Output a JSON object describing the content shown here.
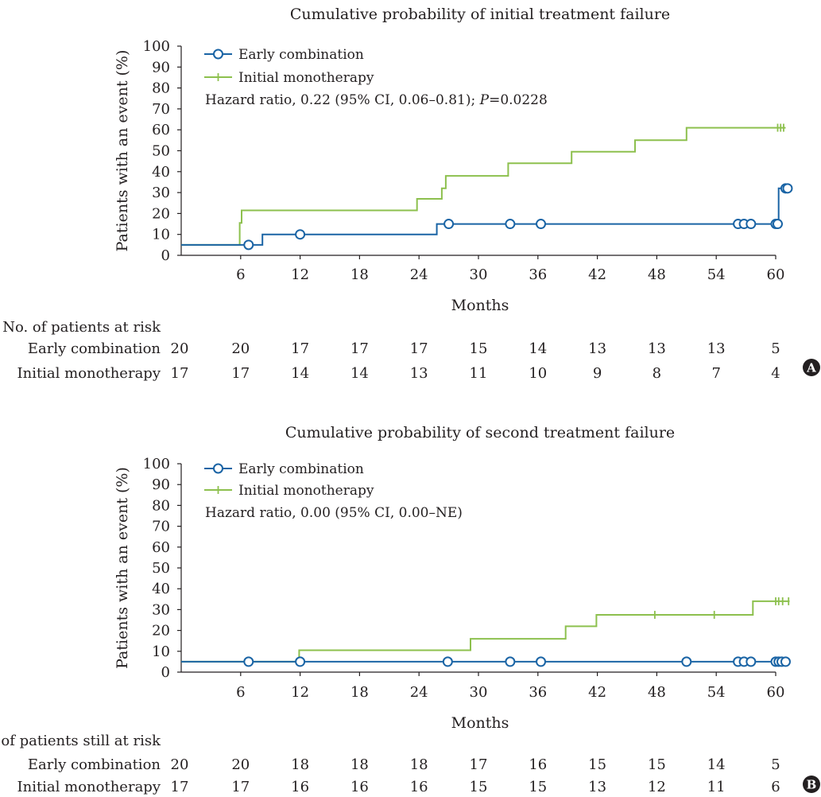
{
  "colors": {
    "early_combination": "#1a64a5",
    "initial_monotherapy": "#8dc04e",
    "axis": "#231f20",
    "badge": "#231f20"
  },
  "chart_data": [
    {
      "type": "line",
      "step": true,
      "badge": "A",
      "title": "Cumulative probability of initial treatment failure",
      "xlabel": "Months",
      "ylabel": "Patients with an event (%)",
      "xlim": [
        0,
        60
      ],
      "ylim": [
        0,
        100
      ],
      "x_ticks": [
        6,
        12,
        18,
        24,
        30,
        36,
        42,
        48,
        54,
        60
      ],
      "y_ticks": [
        0,
        10,
        20,
        30,
        40,
        50,
        60,
        70,
        80,
        90,
        100
      ],
      "annotation": {
        "text": "Hazard ratio, 0.22 (95% CI, 0.06–0.81); ",
        "italic": "P",
        "suffix": "=0.0228"
      },
      "legend_position": "top-left",
      "series": [
        {
          "name": "Early combination",
          "key": "early_combination",
          "marker": "circle",
          "steps": [
            [
              0,
              5
            ],
            [
              8.2,
              5
            ],
            [
              8.2,
              10
            ],
            [
              25.8,
              10
            ],
            [
              25.8,
              15
            ],
            [
              60.3,
              15
            ],
            [
              60.3,
              32
            ],
            [
              61,
              32
            ]
          ],
          "censored": [
            [
              6.8,
              5
            ],
            [
              12,
              10
            ],
            [
              27,
              15
            ],
            [
              33.2,
              15
            ],
            [
              36.3,
              15
            ],
            [
              56.2,
              15
            ],
            [
              56.8,
              15
            ],
            [
              57.5,
              15
            ],
            [
              60,
              15
            ],
            [
              60.2,
              15
            ],
            [
              61,
              32
            ],
            [
              61.2,
              32
            ]
          ]
        },
        {
          "name": "Initial monotherapy",
          "key": "initial_monotherapy",
          "marker": "tick",
          "steps": [
            [
              0,
              5
            ],
            [
              5.9,
              5
            ],
            [
              5.9,
              15.5
            ],
            [
              6.1,
              15.5
            ],
            [
              6.1,
              21.5
            ],
            [
              23.8,
              21.5
            ],
            [
              23.8,
              27
            ],
            [
              26.3,
              27
            ],
            [
              26.3,
              32
            ],
            [
              26.7,
              32
            ],
            [
              26.7,
              38
            ],
            [
              33,
              38
            ],
            [
              33,
              44
            ],
            [
              39.4,
              44
            ],
            [
              39.4,
              49.5
            ],
            [
              45.8,
              49.5
            ],
            [
              45.8,
              55
            ],
            [
              51,
              55
            ],
            [
              51,
              61
            ],
            [
              61,
              61
            ]
          ],
          "censored": [
            [
              60.2,
              61
            ],
            [
              60.5,
              61
            ],
            [
              60.8,
              61
            ]
          ]
        }
      ],
      "risk_table": {
        "header": "No. of patients at risk",
        "rows": [
          {
            "label": "Early combination",
            "values": [
              20,
              20,
              17,
              17,
              17,
              15,
              14,
              13,
              13,
              13,
              5
            ]
          },
          {
            "label": "Initial monotherapy",
            "values": [
              17,
              17,
              14,
              14,
              13,
              11,
              10,
              9,
              8,
              7,
              4
            ]
          }
        ]
      }
    },
    {
      "type": "line",
      "step": true,
      "badge": "B",
      "title": "Cumulative probability of second treatment failure",
      "xlabel": "Months",
      "ylabel": "Patients with an event (%)",
      "xlim": [
        0,
        60
      ],
      "ylim": [
        0,
        100
      ],
      "x_ticks": [
        6,
        12,
        18,
        24,
        30,
        36,
        42,
        48,
        54,
        60
      ],
      "y_ticks": [
        0,
        10,
        20,
        30,
        40,
        50,
        60,
        70,
        80,
        90,
        100
      ],
      "annotation": {
        "text": "Hazard ratio, 0.00 (95% CI, 0.00–NE)",
        "italic": "",
        "suffix": ""
      },
      "legend_position": "top-left",
      "series": [
        {
          "name": "Early combination",
          "key": "early_combination",
          "marker": "circle",
          "steps": [
            [
              0,
              5
            ],
            [
              61.3,
              5
            ]
          ],
          "censored": [
            [
              6.8,
              5
            ],
            [
              12,
              5
            ],
            [
              26.9,
              5
            ],
            [
              33.2,
              5
            ],
            [
              36.3,
              5
            ],
            [
              51,
              5
            ],
            [
              56.2,
              5
            ],
            [
              56.8,
              5
            ],
            [
              57.5,
              5
            ],
            [
              60,
              5
            ],
            [
              60.3,
              5
            ],
            [
              60.6,
              5
            ],
            [
              61,
              5
            ]
          ]
        },
        {
          "name": "Initial monotherapy",
          "key": "initial_monotherapy",
          "marker": "tick",
          "steps": [
            [
              0,
              5
            ],
            [
              11.9,
              5
            ],
            [
              11.9,
              10.5
            ],
            [
              29.2,
              10.5
            ],
            [
              29.2,
              16
            ],
            [
              38.8,
              16
            ],
            [
              38.8,
              22
            ],
            [
              41.9,
              22
            ],
            [
              41.9,
              27.5
            ],
            [
              57.7,
              27.5
            ],
            [
              57.7,
              34
            ],
            [
              61.4,
              34
            ]
          ],
          "censored": [
            [
              47.8,
              27.5
            ],
            [
              53.8,
              27.5
            ],
            [
              60,
              34
            ],
            [
              60.3,
              34
            ],
            [
              60.7,
              34
            ],
            [
              61.3,
              34
            ]
          ]
        }
      ],
      "risk_table": {
        "header": "No. of patients still at risk",
        "rows": [
          {
            "label": "Early combination",
            "values": [
              20,
              20,
              18,
              18,
              18,
              17,
              16,
              15,
              15,
              14,
              5
            ]
          },
          {
            "label": "Initial monotherapy",
            "values": [
              17,
              17,
              16,
              16,
              16,
              15,
              15,
              13,
              12,
              11,
              6
            ]
          }
        ]
      }
    }
  ]
}
